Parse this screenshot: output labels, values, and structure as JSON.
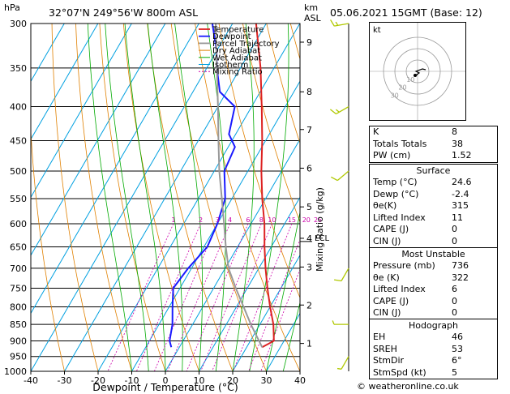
{
  "header": {
    "location": "32°07'N  249°56'W  800m ASL",
    "datetime": "05.06.2021  15GMT  (Base: 12)",
    "hpa_label": "hPa",
    "km_label": "km",
    "asl_label": "ASL"
  },
  "axes": {
    "xlabel": "Dewpoint / Temperature (°C)",
    "mixing_label": "Mixing Ratio (g/kg)",
    "lcl_label": "LCL"
  },
  "hodograph": {
    "label": "kt",
    "ring_labels": [
      "10",
      "20",
      "30"
    ]
  },
  "indices": {
    "rows": [
      {
        "label": "K",
        "value": "8"
      },
      {
        "label": "Totals Totals",
        "value": "38"
      },
      {
        "label": "PW (cm)",
        "value": "1.52"
      }
    ]
  },
  "surface": {
    "title": "Surface",
    "rows": [
      {
        "label": "Temp (°C)",
        "value": "24.6"
      },
      {
        "label": "Dewp (°C)",
        "value": "-2.4"
      },
      {
        "label": "θe(K)",
        "value": "315"
      },
      {
        "label": "Lifted Index",
        "value": "11"
      },
      {
        "label": "CAPE (J)",
        "value": "0"
      },
      {
        "label": "CIN (J)",
        "value": "0"
      }
    ]
  },
  "most_unstable": {
    "title": "Most Unstable",
    "rows": [
      {
        "label": "Pressure (mb)",
        "value": "736"
      },
      {
        "label": "θe (K)",
        "value": "322"
      },
      {
        "label": "Lifted Index",
        "value": "6"
      },
      {
        "label": "CAPE (J)",
        "value": "0"
      },
      {
        "label": "CIN (J)",
        "value": "0"
      }
    ]
  },
  "hodograph_params": {
    "title": "Hodograph",
    "rows": [
      {
        "label": "EH",
        "value": "46"
      },
      {
        "label": "SREH",
        "value": "53"
      },
      {
        "label": "StmDir",
        "value": "6°"
      },
      {
        "label": "StmSpd (kt)",
        "value": "5"
      }
    ]
  },
  "footer": "© weatheronline.co.uk",
  "colors": {
    "temperature": "#dd2222",
    "dewpoint": "#1a1aff",
    "parcel": "#999999",
    "dry_adiabat": "#e08000",
    "wet_adiabat": "#00aa00",
    "isotherm": "#00a0e0",
    "mixing_ratio": "#cc00aa",
    "wind": "#b0c800"
  },
  "chart_data": {
    "type": "line",
    "title": "",
    "xlabel": "Dewpoint / Temperature (°C)",
    "ylabel": "hPa",
    "xlim": [
      -40,
      40
    ],
    "ylim": [
      1000,
      300
    ],
    "y_scale": "log",
    "skew": true,
    "x_ticks": [
      -40,
      -30,
      -20,
      -10,
      0,
      10,
      20,
      30,
      40
    ],
    "pressure_ticks": [
      300,
      350,
      400,
      450,
      500,
      550,
      600,
      650,
      700,
      750,
      800,
      850,
      900,
      950,
      1000
    ],
    "km_ticks": [
      {
        "label": "1",
        "p": 908
      },
      {
        "label": "2",
        "p": 795
      },
      {
        "label": "3",
        "p": 697
      },
      {
        "label": "4",
        "p": 631
      },
      {
        "label": "5",
        "p": 566
      },
      {
        "label": "6",
        "p": 495
      },
      {
        "label": "7",
        "p": 433
      },
      {
        "label": "8",
        "p": 380
      },
      {
        "label": "9",
        "p": 320
      }
    ],
    "lcl_p": 638,
    "legend": [
      "Temperature",
      "Dewpoint",
      "Parcel Trajectory",
      "Dry Adiabat",
      "Wet Adiabat",
      "Isotherm",
      "Mixing Ratio"
    ],
    "legend_position": "top-left",
    "mixing_ratio_labels": [
      "1",
      "2",
      "3",
      "4",
      "6",
      "8",
      "10",
      "15",
      "20",
      "25"
    ],
    "series": [
      {
        "name": "Temperature",
        "points": [
          [
            920,
            24.6
          ],
          [
            900,
            27
          ],
          [
            850,
            24
          ],
          [
            800,
            20
          ],
          [
            750,
            16
          ],
          [
            700,
            12
          ],
          [
            650,
            8
          ],
          [
            600,
            4
          ],
          [
            550,
            -1
          ],
          [
            500,
            -6
          ],
          [
            450,
            -11
          ],
          [
            400,
            -17
          ],
          [
            350,
            -24
          ],
          [
            300,
            -33
          ]
        ]
      },
      {
        "name": "Dewpoint",
        "points": [
          [
            920,
            -2.4
          ],
          [
            900,
            -4
          ],
          [
            850,
            -6
          ],
          [
            800,
            -9
          ],
          [
            750,
            -12
          ],
          [
            700,
            -11
          ],
          [
            650,
            -9
          ],
          [
            600,
            -10
          ],
          [
            550,
            -12
          ],
          [
            500,
            -17
          ],
          [
            460,
            -18
          ],
          [
            440,
            -22
          ],
          [
            400,
            -25
          ],
          [
            380,
            -32
          ],
          [
            350,
            -37
          ],
          [
            330,
            -40
          ],
          [
            300,
            -46
          ]
        ]
      },
      {
        "name": "Parcel Trajectory",
        "points": [
          [
            920,
            24.6
          ],
          [
            850,
            17.3
          ],
          [
            750,
            6.6
          ],
          [
            700,
            1
          ],
          [
            650,
            -3.5
          ],
          [
            600,
            -8
          ],
          [
            550,
            -13
          ],
          [
            500,
            -18.5
          ],
          [
            450,
            -24
          ],
          [
            400,
            -30
          ],
          [
            350,
            -37
          ],
          [
            300,
            -45
          ]
        ]
      }
    ],
    "wind_barbs": [
      {
        "p": 300,
        "dir": 260,
        "speed": 15
      },
      {
        "p": 400,
        "dir": 240,
        "speed": 15
      },
      {
        "p": 500,
        "dir": 230,
        "speed": 10
      },
      {
        "p": 700,
        "dir": 210,
        "speed": 10
      },
      {
        "p": 850,
        "dir": 270,
        "speed": 5
      },
      {
        "p": 950,
        "dir": 210,
        "speed": 5
      }
    ]
  }
}
